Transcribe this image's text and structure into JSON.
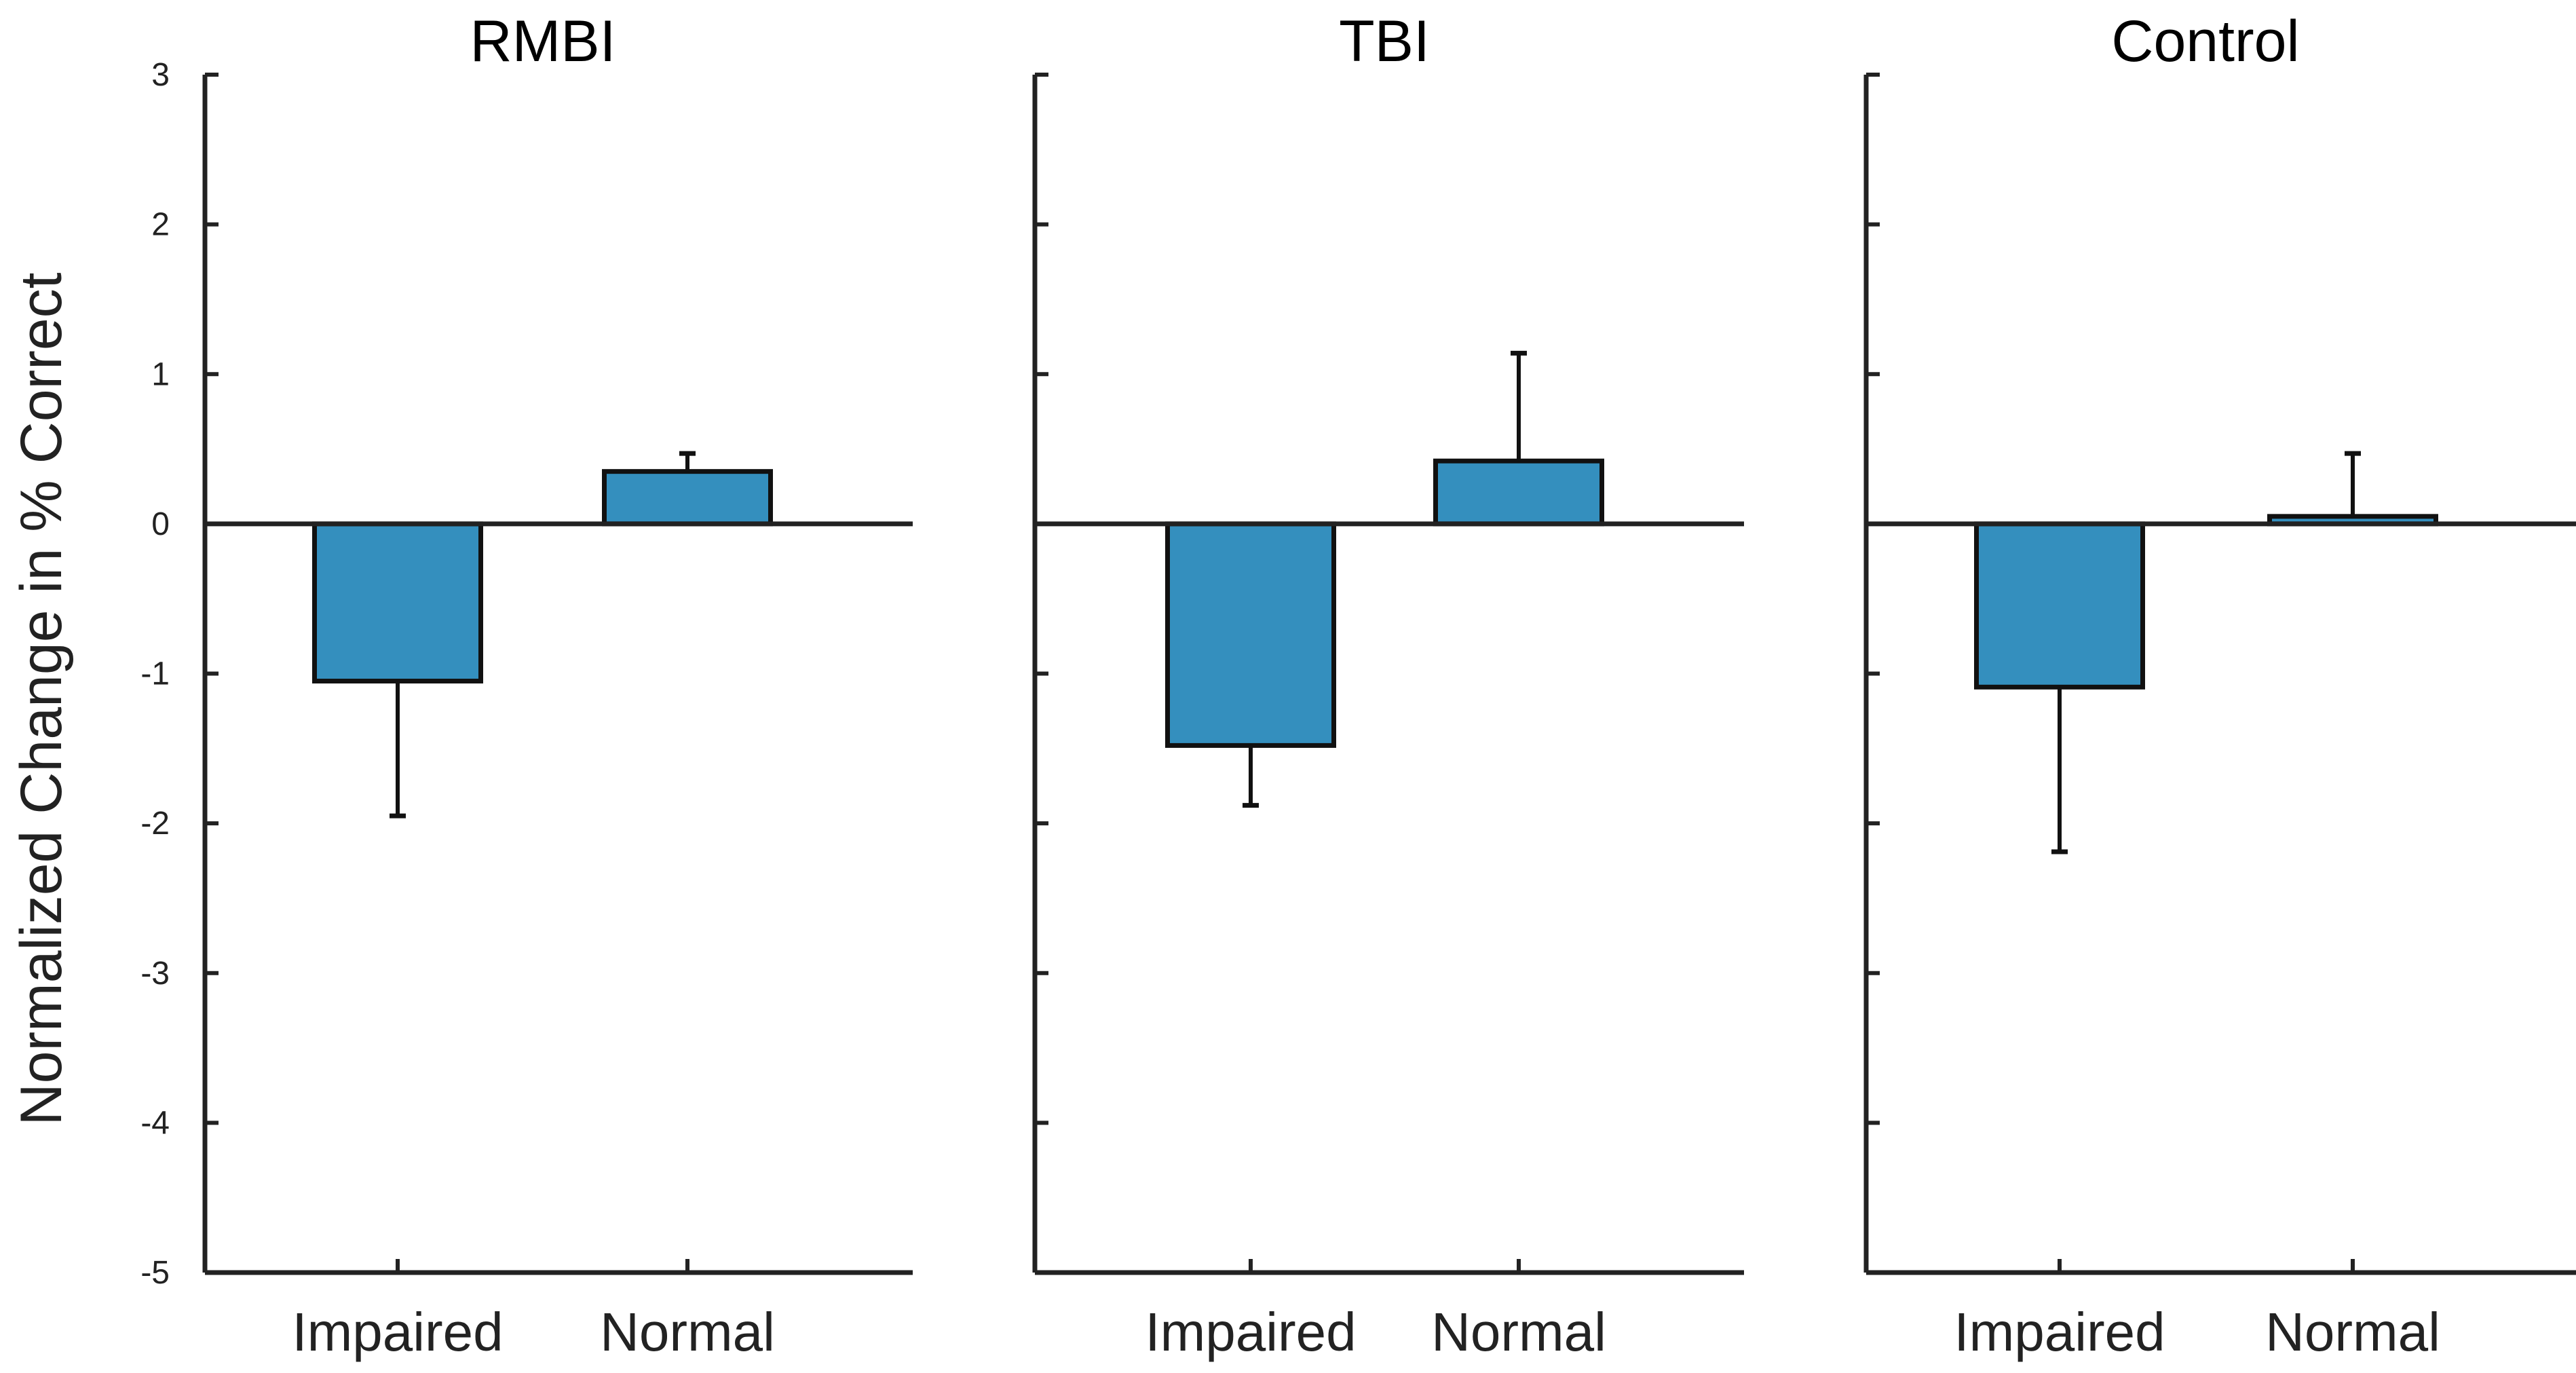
{
  "chart_data": {
    "type": "bar",
    "ylabel": "Normalized Change in % Correct",
    "ylim": [
      -5,
      3
    ],
    "yticks": [
      3,
      2,
      1,
      0,
      -1,
      -2,
      -3,
      -4,
      -5
    ],
    "categories": [
      "Impaired",
      "Normal"
    ],
    "bar_color": "#348fbe",
    "panels": [
      {
        "title": "RMBI",
        "values": [
          -1.05,
          0.35
        ],
        "errors": [
          0.9,
          0.12
        ]
      },
      {
        "title": "TBI",
        "values": [
          -1.48,
          0.42
        ],
        "errors": [
          0.4,
          0.72
        ]
      },
      {
        "title": "Control",
        "values": [
          -1.09,
          0.05
        ],
        "errors": [
          1.1,
          0.42
        ]
      }
    ]
  }
}
